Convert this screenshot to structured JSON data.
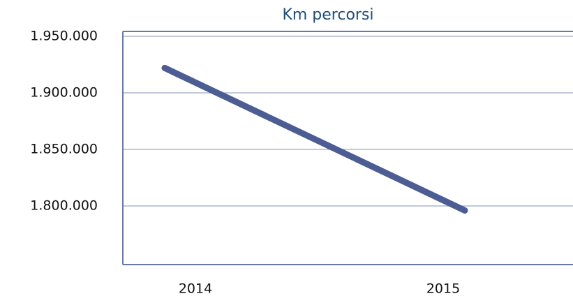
{
  "chart_data": {
    "type": "line",
    "title": "Km percorsi",
    "categories": [
      "2014",
      "2015"
    ],
    "series": [
      {
        "name": "Km percorsi",
        "color": "#4b5d93",
        "values": [
          1922000,
          1796000
        ]
      }
    ],
    "ylim": [
      1750000,
      1950000
    ],
    "yticks": [
      {
        "value": 1800000,
        "label": "1.800.000"
      },
      {
        "value": 1850000,
        "label": "1.850.000"
      },
      {
        "value": 1900000,
        "label": "1.900.000"
      },
      {
        "value": 1950000,
        "label": "1.950.000"
      }
    ],
    "grid": true
  }
}
